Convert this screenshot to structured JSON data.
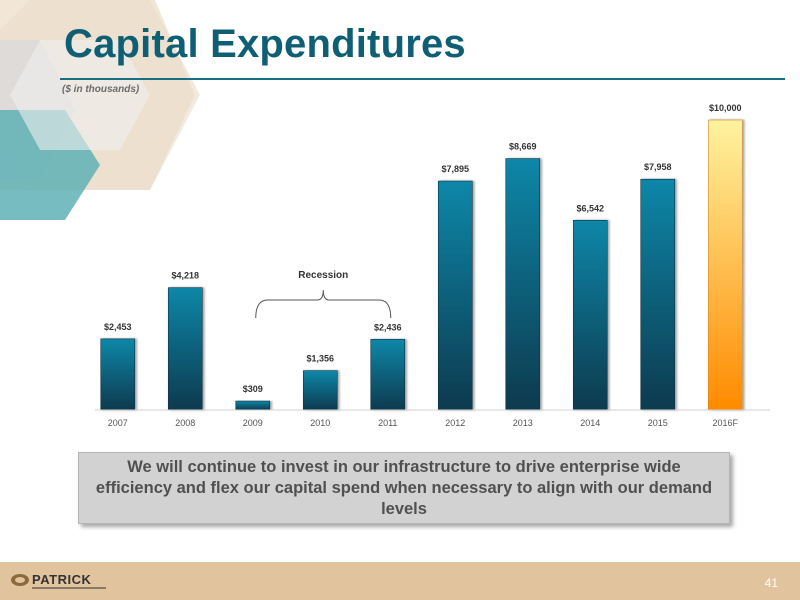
{
  "slide": {
    "title": "Capital Expenditures",
    "subtitle": "($ in thousands)",
    "callout": "We will continue to invest in our infrastructure to drive enterprise wide efficiency and flex our capital spend when necessary to align with our demand levels",
    "page_number": "41",
    "logo_text": "PATRICK"
  },
  "colors": {
    "title": "#0f5f74",
    "bar_actual_top": "#0b87a8",
    "bar_actual_bottom": "#0b3a4e",
    "bar_forecast_top": "#fff3a0",
    "bar_forecast_bottom": "#ff8a00",
    "footer": "#e1c39e",
    "hex_light": "#e8d3b6",
    "hex_gray": "#d9d9d9",
    "hex_teal": "#5fb0b5"
  },
  "chart_data": {
    "type": "bar",
    "title": "",
    "xlabel": "",
    "ylabel": "",
    "categories": [
      "2007",
      "2008",
      "2009",
      "2010",
      "2011",
      "2012",
      "2013",
      "2014",
      "2015",
      "2016F"
    ],
    "values": [
      2453,
      4218,
      309,
      1356,
      2436,
      7895,
      8669,
      6542,
      7958,
      10000
    ],
    "data_labels": [
      "$2,453",
      "$4,218",
      "$309",
      "$1,356",
      "$2,436",
      "$7,895",
      "$8,669",
      "$6,542",
      "$7,958",
      "$10,000"
    ],
    "forecast_categories": [
      "2016F"
    ],
    "ylim": [
      0,
      10000
    ],
    "grid": false,
    "legend": "none",
    "annotations": [
      {
        "text": "Recession",
        "from": "2009",
        "to": "2011"
      }
    ]
  }
}
